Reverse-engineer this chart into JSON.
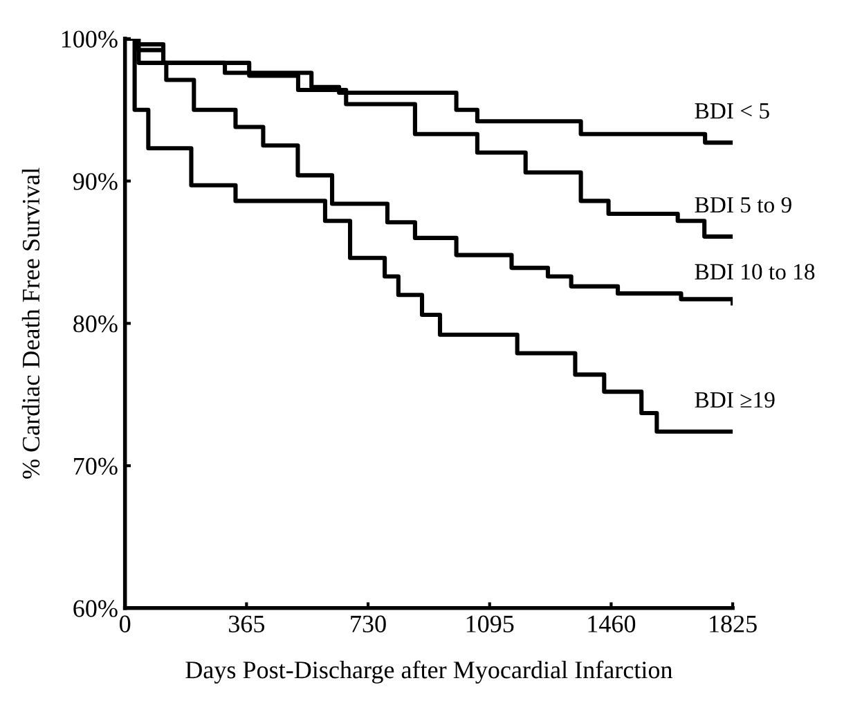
{
  "chart_data": {
    "type": "step",
    "xlabel": "Days Post-Discharge after Myocardial Infarction",
    "ylabel": "% Cardiac Death Free Survival",
    "xlim": [
      0,
      1825
    ],
    "xticks": [
      0,
      365,
      730,
      1095,
      1460,
      1825
    ],
    "ylim": [
      60,
      100
    ],
    "yticks": [
      {
        "value": 60,
        "label": "60%"
      },
      {
        "value": 70,
        "label": "70%"
      },
      {
        "value": 80,
        "label": "80%"
      },
      {
        "value": 90,
        "label": "90%"
      },
      {
        "value": 100,
        "label": "100%"
      }
    ],
    "grid": false,
    "legend": false,
    "marker": "none",
    "line_style": "solid",
    "series": [
      {
        "name": "BDI < 5",
        "color": "#000000",
        "x": [
          0,
          40,
          115,
          300,
          560,
          643,
          995,
          1058,
          1369,
          1742,
          1825
        ],
        "values": [
          100,
          99.6,
          98.3,
          97.6,
          96.6,
          96.2,
          95,
          94.2,
          93.3,
          92.7,
          92.7
        ]
      },
      {
        "name": "BDI 5 to 9",
        "color": "#000000",
        "x": [
          0,
          40,
          115,
          373,
          520,
          664,
          871,
          1058,
          1203,
          1369,
          1452,
          1660,
          1740,
          1825
        ],
        "values": [
          100,
          99.2,
          98.3,
          97.4,
          96.4,
          95.4,
          93.3,
          92,
          90.6,
          88.6,
          87.7,
          87.2,
          86.1,
          86.1
        ]
      },
      {
        "name": "BDI 10 to 18",
        "color": "#000000",
        "x": [
          0,
          41,
          124,
          207,
          332,
          415,
          519,
          622,
          788,
          871,
          995,
          1161,
          1270,
          1340,
          1480,
          1670,
          1825
        ],
        "values": [
          100,
          98.3,
          97.1,
          95,
          93.8,
          92.5,
          90.4,
          88.4,
          87.1,
          86,
          84.8,
          83.9,
          83.3,
          82.6,
          82.1,
          81.7,
          81.4
        ]
      },
      {
        "name": "BDI ≥19",
        "color": "#000000",
        "x": [
          0,
          29,
          70,
          199,
          332,
          601,
          676,
          780,
          821,
          892,
          946,
          1178,
          1352,
          1439,
          1551,
          1597,
          1825
        ],
        "values": [
          100,
          95,
          92.3,
          89.7,
          88.6,
          87.2,
          84.6,
          83.3,
          82,
          80.6,
          79.2,
          77.9,
          76.4,
          75.2,
          73.7,
          72.4,
          72.4
        ]
      }
    ]
  }
}
